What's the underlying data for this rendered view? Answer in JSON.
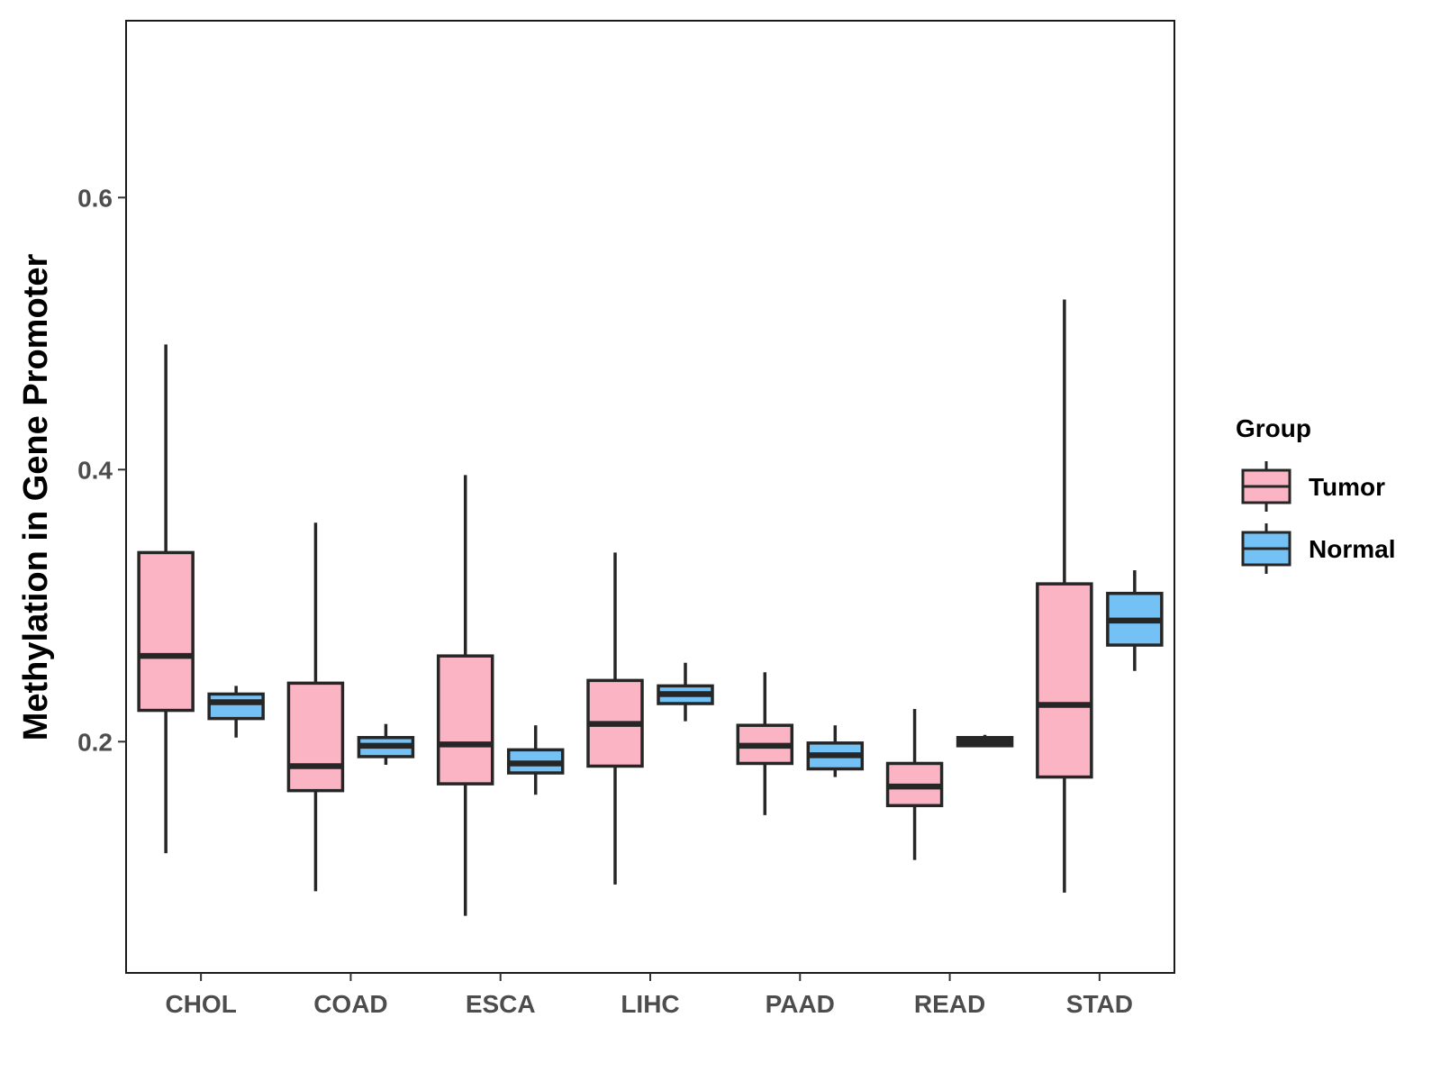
{
  "chart_data": {
    "type": "boxplot",
    "title": "",
    "xlabel": "",
    "ylabel": "Methylation in Gene Promoter",
    "ylim": [
      0.03,
      0.73
    ],
    "y_ticks": [
      0.2,
      0.4,
      0.6
    ],
    "y_tick_labels": [
      "0.2",
      "0.4",
      "0.6"
    ],
    "grid": false,
    "legend": {
      "title": "Group",
      "position": "right"
    },
    "categories": [
      "CHOL",
      "COAD",
      "ESCA",
      "LIHC",
      "PAAD",
      "READ",
      "STAD"
    ],
    "series": [
      {
        "name": "Tumor",
        "color": "#fbb4c4",
        "boxes": [
          {
            "category": "CHOL",
            "min": 0.118,
            "q1": 0.223,
            "median": 0.263,
            "q3": 0.339,
            "max": 0.492
          },
          {
            "category": "COAD",
            "min": 0.09,
            "q1": 0.164,
            "median": 0.182,
            "q3": 0.243,
            "max": 0.361
          },
          {
            "category": "ESCA",
            "min": 0.072,
            "q1": 0.169,
            "median": 0.198,
            "q3": 0.263,
            "max": 0.396
          },
          {
            "category": "LIHC",
            "min": 0.095,
            "q1": 0.182,
            "median": 0.213,
            "q3": 0.245,
            "max": 0.339
          },
          {
            "category": "PAAD",
            "min": 0.146,
            "q1": 0.184,
            "median": 0.197,
            "q3": 0.212,
            "max": 0.251
          },
          {
            "category": "READ",
            "min": 0.113,
            "q1": 0.153,
            "median": 0.167,
            "q3": 0.184,
            "max": 0.224
          },
          {
            "category": "STAD",
            "min": 0.089,
            "q1": 0.174,
            "median": 0.227,
            "q3": 0.316,
            "max": 0.525
          }
        ]
      },
      {
        "name": "Normal",
        "color": "#74c1f5",
        "boxes": [
          {
            "category": "CHOL",
            "min": 0.203,
            "q1": 0.217,
            "median": 0.229,
            "q3": 0.235,
            "max": 0.241
          },
          {
            "category": "COAD",
            "min": 0.183,
            "q1": 0.189,
            "median": 0.197,
            "q3": 0.203,
            "max": 0.213
          },
          {
            "category": "ESCA",
            "min": 0.161,
            "q1": 0.177,
            "median": 0.184,
            "q3": 0.194,
            "max": 0.212
          },
          {
            "category": "LIHC",
            "min": 0.215,
            "q1": 0.228,
            "median": 0.235,
            "q3": 0.241,
            "max": 0.258
          },
          {
            "category": "PAAD",
            "min": 0.174,
            "q1": 0.18,
            "median": 0.19,
            "q3": 0.199,
            "max": 0.212
          },
          {
            "category": "READ",
            "min": 0.196,
            "q1": 0.197,
            "median": 0.2,
            "q3": 0.203,
            "max": 0.205
          },
          {
            "category": "STAD",
            "min": 0.252,
            "q1": 0.271,
            "median": 0.289,
            "q3": 0.309,
            "max": 0.326
          }
        ]
      }
    ]
  }
}
